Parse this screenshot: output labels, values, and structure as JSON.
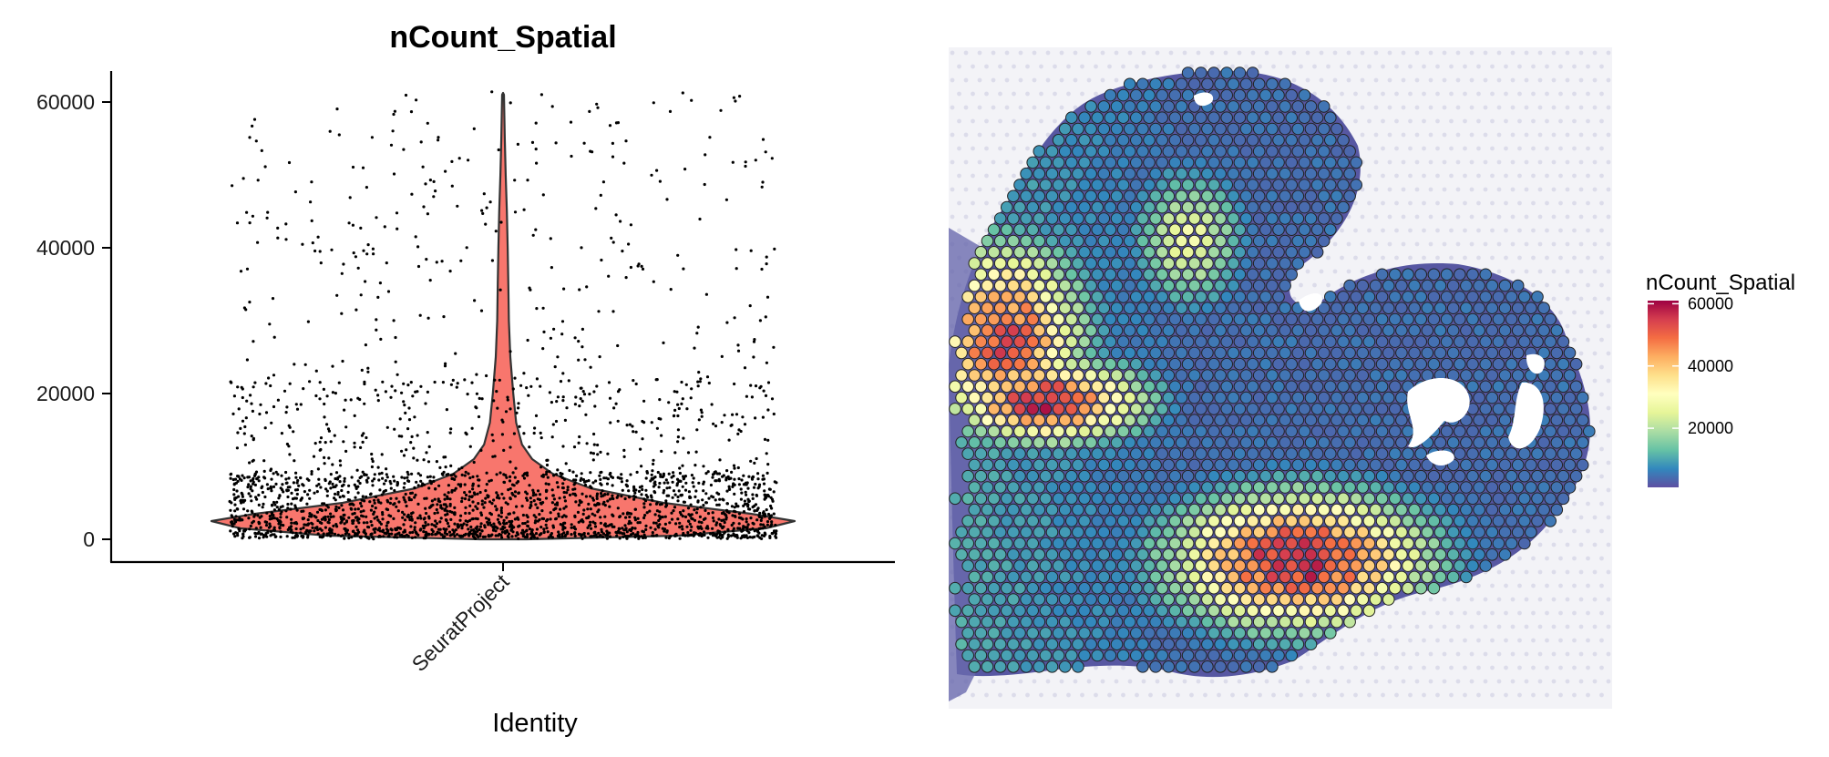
{
  "colors": {
    "violin_fill": "#F8766D",
    "violin_outline": "#333333",
    "point": "#000000",
    "tissue": "#4a4a9a",
    "spot_outline": "#222222",
    "spectral_scale": [
      "#5E4FA2",
      "#3288BD",
      "#66C2A5",
      "#ABDDA4",
      "#E6F598",
      "#FFFFBF",
      "#FEE08B",
      "#FDAE61",
      "#F46D43",
      "#D53E4F",
      "#9E0142"
    ]
  },
  "chart_data": [
    {
      "type": "violin",
      "title": "nCount_Spatial",
      "xlabel": "Identity",
      "ylabel": "",
      "categories": [
        "SeuratProject"
      ],
      "ylim": [
        -3000,
        64000
      ],
      "yticks": [
        0,
        20000,
        40000,
        60000
      ],
      "ytick_labels": [
        "0",
        "20000",
        "40000",
        "60000"
      ],
      "grid": false,
      "density_profile": [
        {
          "y": 0,
          "width": 0.08
        },
        {
          "y": 500,
          "width": 0.6
        },
        {
          "y": 1500,
          "width": 0.9
        },
        {
          "y": 2500,
          "width": 1.0
        },
        {
          "y": 3500,
          "width": 0.85
        },
        {
          "y": 5000,
          "width": 0.55
        },
        {
          "y": 7000,
          "width": 0.3
        },
        {
          "y": 9000,
          "width": 0.17
        },
        {
          "y": 11000,
          "width": 0.1
        },
        {
          "y": 13000,
          "width": 0.065
        },
        {
          "y": 16000,
          "width": 0.045
        },
        {
          "y": 20000,
          "width": 0.035
        },
        {
          "y": 25000,
          "width": 0.025
        },
        {
          "y": 30000,
          "width": 0.02
        },
        {
          "y": 35000,
          "width": 0.018
        },
        {
          "y": 40000,
          "width": 0.016
        },
        {
          "y": 45000,
          "width": 0.013
        },
        {
          "y": 50000,
          "width": 0.009
        },
        {
          "y": 55000,
          "width": 0.006
        },
        {
          "y": 61000,
          "width": 0.003
        }
      ],
      "points_approx": {
        "count": 2700,
        "min": 200,
        "max": 61500,
        "bulk_range": [
          500,
          10000
        ]
      }
    },
    {
      "type": "spatial_feature",
      "feature": "nCount_Spatial",
      "legend": {
        "title": "nCount_Spatial",
        "placement": "right",
        "range": [
          1000,
          61000
        ],
        "ticks": [
          20000,
          40000,
          60000
        ],
        "tick_labels": [
          "20000",
          "40000",
          "60000"
        ]
      },
      "hotspots": [
        {
          "region": "left-edge",
          "peak": 55000
        },
        {
          "region": "left-lower-band",
          "peak": 60000
        },
        {
          "region": "upper-center",
          "peak": 28000
        },
        {
          "region": "lower-right",
          "peak": 61000
        }
      ]
    }
  ]
}
